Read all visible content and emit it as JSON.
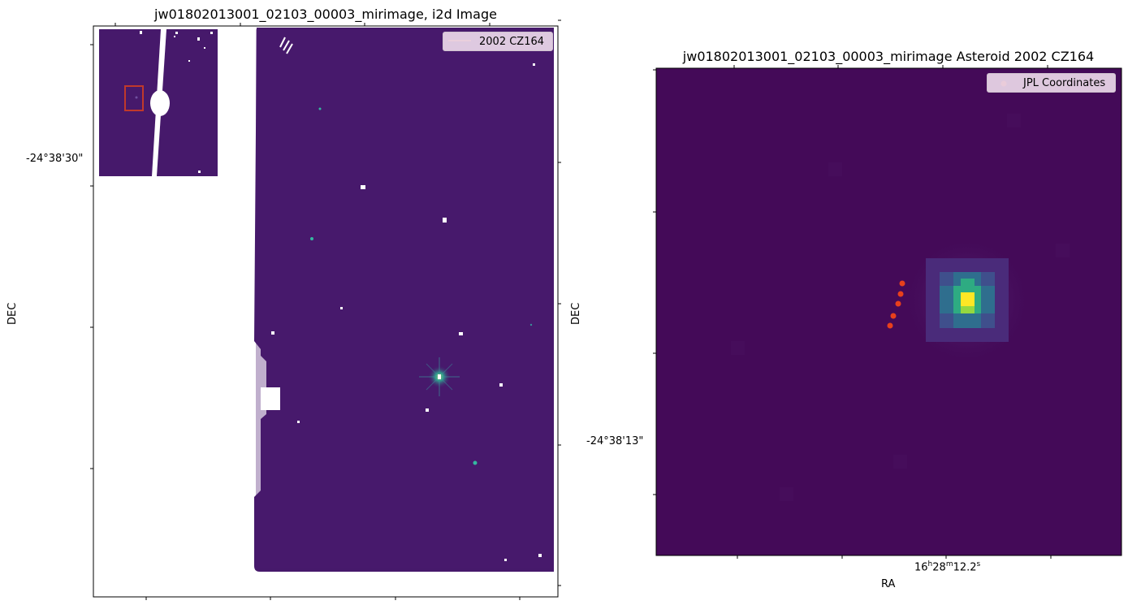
{
  "chart_data": [
    {
      "type": "heatmap",
      "title": "jw01802013001_02103_00003_mirimage,  i2d Image",
      "xlabel": "",
      "ylabel": "DEC",
      "y_tick_labels": [
        "-24°38'30\""
      ],
      "colormap": "viridis",
      "legend": {
        "location": "top-right",
        "entries": [
          {
            "label": "2002 CZ164",
            "marker": "line",
            "color": "#f26b3a"
          }
        ]
      },
      "inset": {
        "description": "inset overview of full frame",
        "highlight_box_color": "#c0392b"
      },
      "grid": false
    },
    {
      "type": "heatmap",
      "title": "jw01802013001_02103_00003_mirimage Asteroid 2002 CZ164",
      "xlabel": "RA",
      "ylabel": "DEC",
      "x_tick_labels": [
        "16h28m12.2s"
      ],
      "y_tick_labels": [
        "-24°38'13\""
      ],
      "colormap": "viridis",
      "legend": {
        "location": "top-right",
        "entries": [
          {
            "label": "JPL Coordinates",
            "marker": "dot",
            "color": "#e8401c"
          }
        ]
      },
      "series": [
        {
          "name": "JPL Coordinates",
          "type": "scatter",
          "color": "#e8401c",
          "points": 5
        }
      ],
      "grid": false
    }
  ],
  "text": {
    "left_title": "jw01802013001_02103_00003_mirimage,  i2d Image",
    "left_ylabel": "DEC",
    "left_ytick": "-24°38'30\"",
    "left_legend": "2002 CZ164",
    "right_title": "jw01802013001_02103_00003_mirimage Asteroid 2002 CZ164",
    "right_ylabel": "DEC",
    "right_ytick": "-24°38'13\"",
    "right_xlabel": "RA",
    "right_xtick_main": "16",
    "right_xtick_h": "h",
    "right_xtick_m_val": "28",
    "right_xtick_m": "m",
    "right_xtick_s_val": "12.2",
    "right_xtick_s": "s",
    "right_legend": "JPL Coordinates"
  },
  "colors": {
    "background_field": "#46196b",
    "right_field": "#440a58",
    "star": "#35b8a0",
    "asteroid_line": "#f26b3a",
    "jpl_dot": "#e8401c",
    "inset_box": "#c0392b"
  }
}
